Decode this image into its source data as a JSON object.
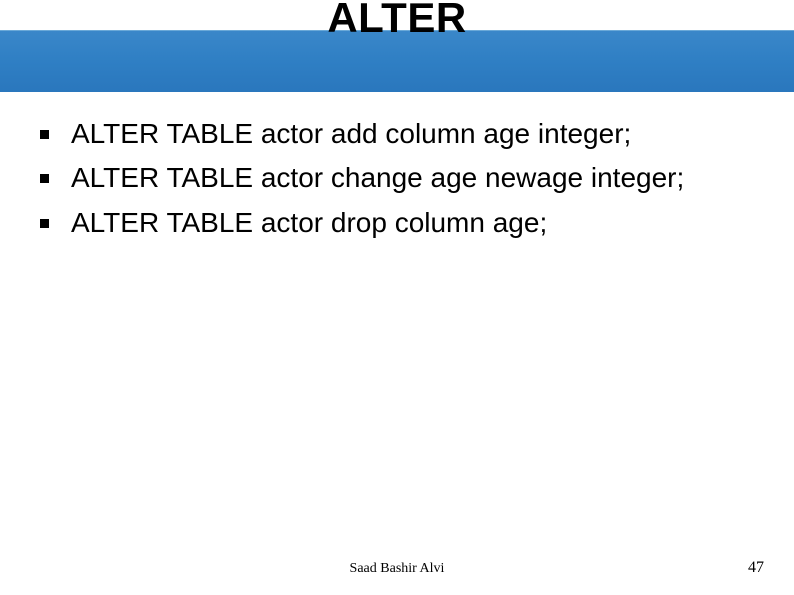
{
  "slide": {
    "title": "ALTER",
    "bullets": [
      "ALTER TABLE actor add column age integer;",
      "ALTER TABLE actor change age newage integer;",
      "ALTER TABLE actor drop column age;"
    ],
    "footer_author": "Saad Bashir Alvi",
    "page_number": "47"
  },
  "style": {
    "band_gradient_top": "#3a87c9",
    "band_gradient_bottom": "#2a77bd",
    "title_fontsize": 42,
    "title_fontweight": "bold",
    "title_color": "#000000",
    "bullet_fontsize": 28,
    "bullet_color": "#000000",
    "bullet_marker_size": 9,
    "bullet_marker_color": "#000000",
    "footer_fontsize": 14,
    "footer_color": "#000000",
    "background_color": "#ffffff",
    "slide_width": 794,
    "slide_height": 595
  }
}
